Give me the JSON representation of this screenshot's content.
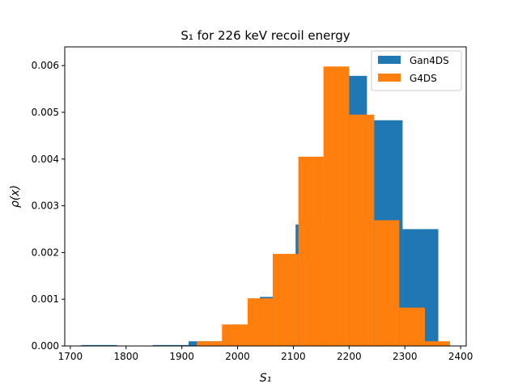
{
  "chart_data": {
    "type": "bar",
    "title": "S₁ for 226 keV recoil energy",
    "xlabel": "S₁",
    "ylabel": "ρ(x)",
    "xlim": [
      1690,
      2410
    ],
    "ylim": [
      0,
      0.0064
    ],
    "xticks": [
      "1700",
      "1800",
      "1900",
      "2000",
      "2100",
      "2200",
      "2300",
      "2400"
    ],
    "yticks": [
      "0.000",
      "0.001",
      "0.002",
      "0.003",
      "0.004",
      "0.005",
      "0.006"
    ],
    "legend_position": "top-right",
    "series": [
      {
        "name": "Gan4DS",
        "color": "#1f77b4",
        "bins": [
          {
            "x0": 1720,
            "x1": 1784,
            "value": 2e-05
          },
          {
            "x0": 1784,
            "x1": 1848,
            "value": 0.0
          },
          {
            "x0": 1848,
            "x1": 1912,
            "value": 2e-05
          },
          {
            "x0": 1912,
            "x1": 1976,
            "value": 0.0001
          },
          {
            "x0": 1976,
            "x1": 2040,
            "value": 0.00046
          },
          {
            "x0": 2040,
            "x1": 2104,
            "value": 0.00105
          },
          {
            "x0": 2104,
            "x1": 2168,
            "value": 0.0026
          },
          {
            "x0": 2168,
            "x1": 2232,
            "value": 0.00578
          },
          {
            "x0": 2232,
            "x1": 2296,
            "value": 0.00483
          },
          {
            "x0": 2296,
            "x1": 2360,
            "value": 0.0025
          }
        ]
      },
      {
        "name": "G4DS",
        "color": "#ff7f0e",
        "bins": [
          {
            "x0": 1927,
            "x1": 1972,
            "value": 0.0001
          },
          {
            "x0": 1972,
            "x1": 2018,
            "value": 0.00046
          },
          {
            "x0": 2018,
            "x1": 2063,
            "value": 0.00102
          },
          {
            "x0": 2063,
            "x1": 2109,
            "value": 0.00197
          },
          {
            "x0": 2109,
            "x1": 2154,
            "value": 0.00405
          },
          {
            "x0": 2154,
            "x1": 2200,
            "value": 0.00598
          },
          {
            "x0": 2200,
            "x1": 2245,
            "value": 0.00495
          },
          {
            "x0": 2245,
            "x1": 2290,
            "value": 0.00269
          },
          {
            "x0": 2290,
            "x1": 2336,
            "value": 0.00082
          },
          {
            "x0": 2336,
            "x1": 2381,
            "value": 0.0001
          }
        ]
      }
    ]
  }
}
